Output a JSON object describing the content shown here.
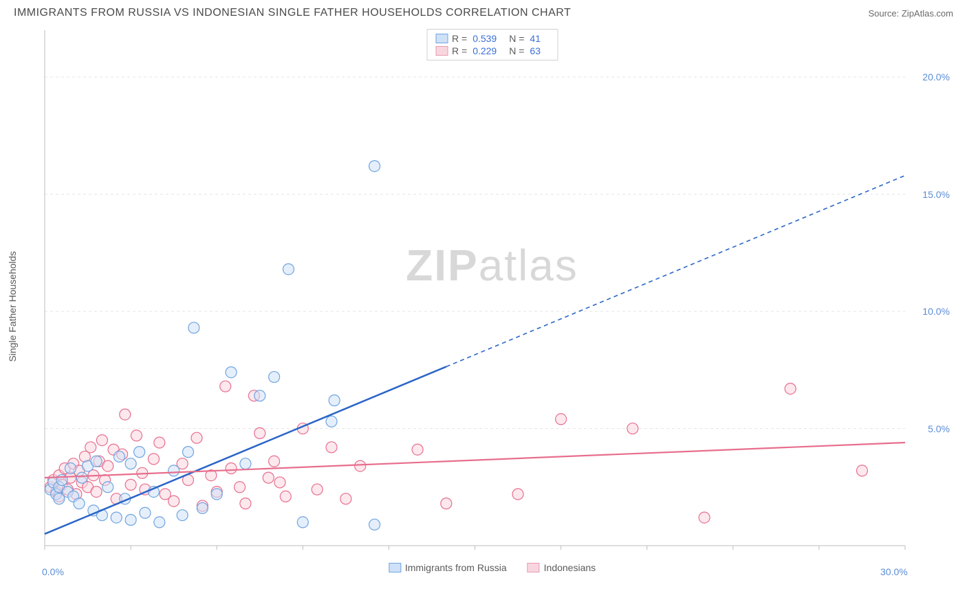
{
  "header": {
    "title": "IMMIGRANTS FROM RUSSIA VS INDONESIAN SINGLE FATHER HOUSEHOLDS CORRELATION CHART",
    "source_prefix": "Source: ",
    "source_name": "ZipAtlas.com"
  },
  "ylabel": "Single Father Households",
  "watermark": {
    "bold": "ZIP",
    "light": "atlas"
  },
  "legend_top": {
    "series": [
      {
        "r_label": "R =",
        "r": "0.539",
        "n_label": "N =",
        "n": "41",
        "fill": "#cfe1f7",
        "stroke": "#6fa3e0"
      },
      {
        "r_label": "R =",
        "r": "0.229",
        "n_label": "N =",
        "n": "63",
        "fill": "#f9d6df",
        "stroke": "#e79ab0"
      }
    ]
  },
  "legend_bottom": {
    "items": [
      {
        "label": "Immigrants from Russia",
        "fill": "#cfe1f7",
        "stroke": "#6fa3e0"
      },
      {
        "label": "Indonesians",
        "fill": "#f9d6df",
        "stroke": "#e79ab0"
      }
    ]
  },
  "chart": {
    "type": "scatter",
    "xlim": [
      0,
      30
    ],
    "ylim": [
      0,
      22
    ],
    "x_ticks": [
      0,
      3,
      6,
      9,
      12,
      15,
      18,
      21,
      24,
      27,
      30
    ],
    "y_ticks": [
      5,
      10,
      15,
      20
    ],
    "x_tick_labels": {
      "0": "0.0%",
      "30": "30.0%"
    },
    "y_tick_labels": {
      "5": "5.0%",
      "10": "10.0%",
      "15": "15.0%",
      "20": "20.0%"
    },
    "grid_color": "#e5e5e5",
    "axis_color": "#bdbdbd",
    "tick_label_color": "#5a8dd6",
    "background_color": "#ffffff",
    "marker_radius": 8,
    "marker_opacity": 0.55,
    "series_blue": {
      "fill": "#cfe1f7",
      "stroke": "#6fa3e0",
      "trend_color": "#2a65c7",
      "trend_solid_end_x": 14,
      "trend": {
        "x1": 0,
        "y1": 0.5,
        "x2": 30,
        "y2": 15.8
      },
      "points": [
        [
          0.2,
          2.4
        ],
        [
          0.3,
          2.7
        ],
        [
          0.4,
          2.2
        ],
        [
          0.5,
          2.0
        ],
        [
          0.5,
          2.5
        ],
        [
          0.6,
          2.8
        ],
        [
          0.8,
          2.3
        ],
        [
          0.9,
          3.3
        ],
        [
          1.0,
          2.1
        ],
        [
          1.2,
          1.8
        ],
        [
          1.3,
          2.9
        ],
        [
          1.5,
          3.4
        ],
        [
          1.7,
          1.5
        ],
        [
          1.8,
          3.6
        ],
        [
          2.0,
          1.3
        ],
        [
          2.2,
          2.5
        ],
        [
          2.5,
          1.2
        ],
        [
          2.6,
          3.8
        ],
        [
          2.8,
          2.0
        ],
        [
          3.0,
          1.1
        ],
        [
          3.0,
          3.5
        ],
        [
          3.3,
          4.0
        ],
        [
          3.5,
          1.4
        ],
        [
          3.8,
          2.3
        ],
        [
          4.0,
          1.0
        ],
        [
          4.5,
          3.2
        ],
        [
          4.8,
          1.3
        ],
        [
          5.0,
          4.0
        ],
        [
          5.2,
          9.3
        ],
        [
          5.5,
          1.6
        ],
        [
          6.0,
          2.2
        ],
        [
          6.5,
          7.4
        ],
        [
          7.0,
          3.5
        ],
        [
          7.5,
          6.4
        ],
        [
          8.0,
          7.2
        ],
        [
          8.5,
          11.8
        ],
        [
          9.0,
          1.0
        ],
        [
          10.0,
          5.3
        ],
        [
          10.1,
          6.2
        ],
        [
          11.5,
          0.9
        ],
        [
          11.5,
          16.2
        ]
      ]
    },
    "series_pink": {
      "fill": "#f9d6df",
      "stroke": "#e76e8d",
      "trend_color": "#e76e8d",
      "trend": {
        "x1": 0,
        "y1": 2.9,
        "x2": 30,
        "y2": 4.4
      },
      "points": [
        [
          0.2,
          2.5
        ],
        [
          0.3,
          2.8
        ],
        [
          0.4,
          2.3
        ],
        [
          0.5,
          3.0
        ],
        [
          0.5,
          2.1
        ],
        [
          0.6,
          2.6
        ],
        [
          0.7,
          3.3
        ],
        [
          0.8,
          2.4
        ],
        [
          0.9,
          2.9
        ],
        [
          1.0,
          3.5
        ],
        [
          1.1,
          2.2
        ],
        [
          1.2,
          3.2
        ],
        [
          1.3,
          2.7
        ],
        [
          1.4,
          3.8
        ],
        [
          1.5,
          2.5
        ],
        [
          1.6,
          4.2
        ],
        [
          1.7,
          3.0
        ],
        [
          1.8,
          2.3
        ],
        [
          1.9,
          3.6
        ],
        [
          2.0,
          4.5
        ],
        [
          2.1,
          2.8
        ],
        [
          2.2,
          3.4
        ],
        [
          2.4,
          4.1
        ],
        [
          2.5,
          2.0
        ],
        [
          2.7,
          3.9
        ],
        [
          2.8,
          5.6
        ],
        [
          3.0,
          2.6
        ],
        [
          3.2,
          4.7
        ],
        [
          3.4,
          3.1
        ],
        [
          3.5,
          2.4
        ],
        [
          3.8,
          3.7
        ],
        [
          4.0,
          4.4
        ],
        [
          4.2,
          2.2
        ],
        [
          4.5,
          1.9
        ],
        [
          4.8,
          3.5
        ],
        [
          5.0,
          2.8
        ],
        [
          5.3,
          4.6
        ],
        [
          5.5,
          1.7
        ],
        [
          5.8,
          3.0
        ],
        [
          6.0,
          2.3
        ],
        [
          6.3,
          6.8
        ],
        [
          6.5,
          3.3
        ],
        [
          6.8,
          2.5
        ],
        [
          7.0,
          1.8
        ],
        [
          7.3,
          6.4
        ],
        [
          7.5,
          4.8
        ],
        [
          7.8,
          2.9
        ],
        [
          8.0,
          3.6
        ],
        [
          8.4,
          2.1
        ],
        [
          9.0,
          5.0
        ],
        [
          9.5,
          2.4
        ],
        [
          10.0,
          4.2
        ],
        [
          10.5,
          2.0
        ],
        [
          11.0,
          3.4
        ],
        [
          13.0,
          4.1
        ],
        [
          14.0,
          1.8
        ],
        [
          16.5,
          2.2
        ],
        [
          18.0,
          5.4
        ],
        [
          20.5,
          5.0
        ],
        [
          23.0,
          1.2
        ],
        [
          26.0,
          6.7
        ],
        [
          28.5,
          3.2
        ],
        [
          8.2,
          2.7
        ]
      ]
    }
  }
}
